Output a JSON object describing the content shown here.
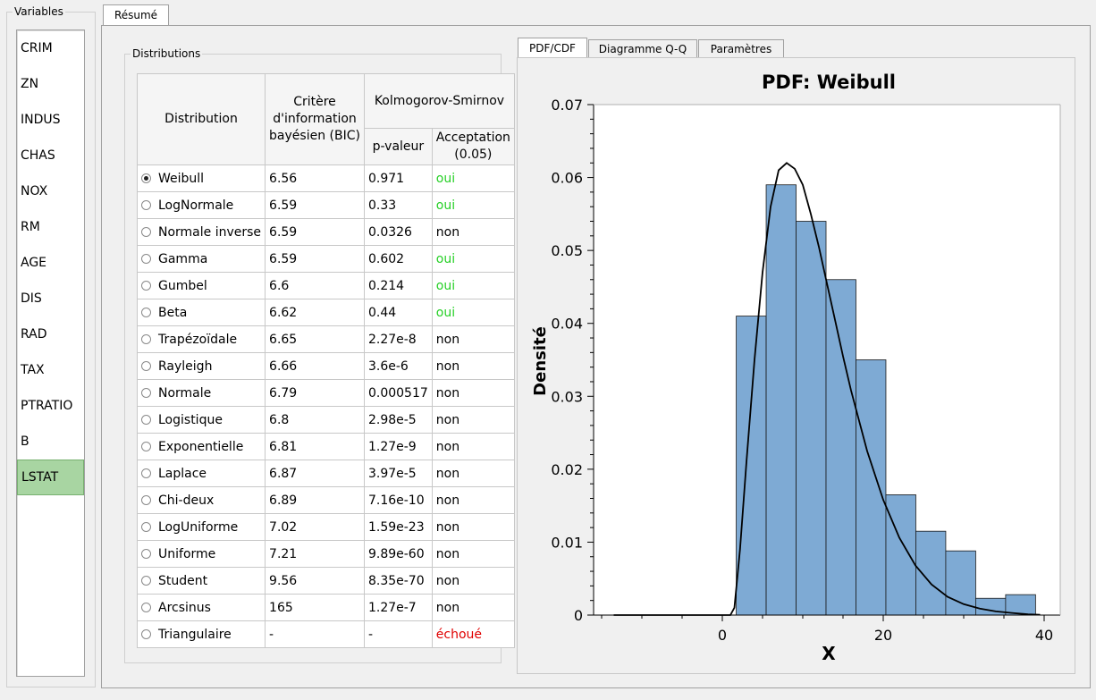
{
  "variables": {
    "title": "Variables",
    "items": [
      "CRIM",
      "ZN",
      "INDUS",
      "CHAS",
      "NOX",
      "RM",
      "AGE",
      "DIS",
      "RAD",
      "TAX",
      "PTRATIO",
      "B",
      "LSTAT"
    ],
    "selected": "LSTAT"
  },
  "main_tab": "Résumé",
  "distributions": {
    "title": "Distributions",
    "headers": {
      "distribution": "Distribution",
      "bic": [
        "Critère",
        "d'information",
        "bayésien (BIC)"
      ],
      "ks": "Kolmogorov-Smirnov",
      "pvalue": "p-valeur",
      "acceptance": [
        "Acceptation",
        "(0.05)"
      ]
    },
    "rows": [
      {
        "name": "Weibull",
        "bic": "6.56",
        "p": "0.971",
        "acc": "oui",
        "selected": true
      },
      {
        "name": "LogNormale",
        "bic": "6.59",
        "p": "0.33",
        "acc": "oui"
      },
      {
        "name": "Normale inverse",
        "bic": "6.59",
        "p": "0.0326",
        "acc": "non"
      },
      {
        "name": "Gamma",
        "bic": "6.59",
        "p": "0.602",
        "acc": "oui"
      },
      {
        "name": "Gumbel",
        "bic": "6.6",
        "p": "0.214",
        "acc": "oui"
      },
      {
        "name": "Beta",
        "bic": "6.62",
        "p": "0.44",
        "acc": "oui"
      },
      {
        "name": "Trapézoïdale",
        "bic": "6.65",
        "p": "2.27e-8",
        "acc": "non"
      },
      {
        "name": "Rayleigh",
        "bic": "6.66",
        "p": "3.6e-6",
        "acc": "non"
      },
      {
        "name": "Normale",
        "bic": "6.79",
        "p": "0.000517",
        "acc": "non"
      },
      {
        "name": "Logistique",
        "bic": "6.8",
        "p": "2.98e-5",
        "acc": "non"
      },
      {
        "name": "Exponentielle",
        "bic": "6.81",
        "p": "1.27e-9",
        "acc": "non"
      },
      {
        "name": "Laplace",
        "bic": "6.87",
        "p": "3.97e-5",
        "acc": "non"
      },
      {
        "name": "Chi-deux",
        "bic": "6.89",
        "p": "7.16e-10",
        "acc": "non"
      },
      {
        "name": "LogUniforme",
        "bic": "7.02",
        "p": "1.59e-23",
        "acc": "non"
      },
      {
        "name": "Uniforme",
        "bic": "7.21",
        "p": "9.89e-60",
        "acc": "non"
      },
      {
        "name": "Student",
        "bic": "9.56",
        "p": "8.35e-70",
        "acc": "non"
      },
      {
        "name": "Arcsinus",
        "bic": "165",
        "p": "1.27e-7",
        "acc": "non"
      },
      {
        "name": "Triangulaire",
        "bic": "-",
        "p": "-",
        "acc": "échoué"
      }
    ]
  },
  "plot_tabs": [
    "PDF/CDF",
    "Diagramme Q-Q",
    "Paramètres"
  ],
  "colors": {
    "accept": "#26d026",
    "fail": "#e00000",
    "selected": "#a8d5a2",
    "bar": "#7eaad4"
  },
  "chart_data": {
    "type": "bar",
    "title": "PDF: Weibull",
    "xlabel": "X",
    "ylabel": "Densité",
    "xlim": [
      -16,
      42
    ],
    "ylim": [
      0,
      0.07
    ],
    "xticks": [
      0,
      20,
      40
    ],
    "yticks": [
      0,
      0.01,
      0.02,
      0.03,
      0.04,
      0.05,
      0.06,
      0.07
    ],
    "ytick_labels": [
      "0",
      "0.01",
      "0.02",
      "0.03",
      "0.04",
      "0.05",
      "0.06",
      "0.07"
    ],
    "histogram": {
      "edges": [
        1.73,
        5.45,
        9.17,
        12.89,
        16.61,
        20.33,
        24.05,
        27.77,
        31.49,
        35.21,
        38.93
      ],
      "values": [
        0.041,
        0.059,
        0.054,
        0.046,
        0.035,
        0.0165,
        0.0115,
        0.0088,
        0.0023,
        0.0028
      ]
    },
    "pdf_curve": {
      "x": [
        -13.5,
        1.0,
        1.5,
        2.2,
        3,
        4,
        5,
        6,
        7,
        8,
        9,
        10,
        11,
        12,
        13,
        14,
        15,
        16,
        18,
        20,
        22,
        24,
        26,
        28,
        30,
        32,
        34,
        36,
        38,
        39.5
      ],
      "y": [
        0,
        0,
        0.001,
        0.009,
        0.021,
        0.035,
        0.047,
        0.056,
        0.061,
        0.062,
        0.0612,
        0.059,
        0.055,
        0.0505,
        0.0455,
        0.0405,
        0.0355,
        0.0308,
        0.0225,
        0.0158,
        0.0106,
        0.0068,
        0.0042,
        0.0025,
        0.0015,
        0.0009,
        0.0005,
        0.0003,
        0.0001,
        5e-05
      ]
    },
    "grid": false
  }
}
